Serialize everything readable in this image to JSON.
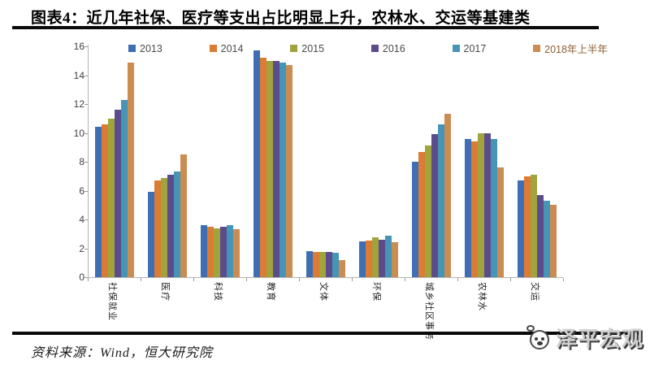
{
  "title": "图表4：近几年社保、医疗等支出占比明显上升，农林水、交运等基建类",
  "footer": {
    "source_label": "资料来源：Wind，恒大研究院"
  },
  "logo": {
    "text": "泽平宏观"
  },
  "chart_data": {
    "type": "bar",
    "title": "图表4：近几年社保、医疗等支出占比明显上升，农林水、交运等基建类",
    "categories": [
      "社保就业",
      "医疗",
      "科技",
      "教育",
      "文体",
      "环保",
      "城乡社区事务",
      "农林水",
      "交运"
    ],
    "series": [
      {
        "name": "2013",
        "color": "#3E6FB4",
        "values": [
          10.4,
          5.9,
          3.6,
          15.7,
          1.8,
          2.5,
          8.0,
          9.6,
          6.7
        ]
      },
      {
        "name": "2014",
        "color": "#DC7B33",
        "values": [
          10.6,
          6.7,
          3.5,
          15.2,
          1.75,
          2.55,
          8.7,
          9.4,
          7.0
        ]
      },
      {
        "name": "2015",
        "color": "#A1A33D",
        "values": [
          11.0,
          6.9,
          3.4,
          15.0,
          1.75,
          2.75,
          9.1,
          10.0,
          7.1
        ]
      },
      {
        "name": "2016",
        "color": "#5D4C8C",
        "values": [
          11.6,
          7.1,
          3.5,
          15.0,
          1.75,
          2.6,
          9.9,
          10.0,
          5.7
        ]
      },
      {
        "name": "2017",
        "color": "#4595B7",
        "values": [
          12.3,
          7.3,
          3.6,
          14.9,
          1.7,
          2.85,
          10.6,
          9.6,
          5.3
        ]
      },
      {
        "name": "2018年上半年",
        "color": "#CB8C52",
        "values": [
          14.9,
          8.5,
          3.3,
          14.7,
          1.2,
          2.4,
          11.3,
          7.6,
          5.0
        ]
      }
    ],
    "ylim": [
      0,
      16
    ],
    "ytick_step": 2,
    "yticks": [
      0,
      2,
      4,
      6,
      8,
      10,
      12,
      14,
      16
    ],
    "legend_position": "top",
    "grid": false,
    "xlabel": "",
    "ylabel": ""
  }
}
